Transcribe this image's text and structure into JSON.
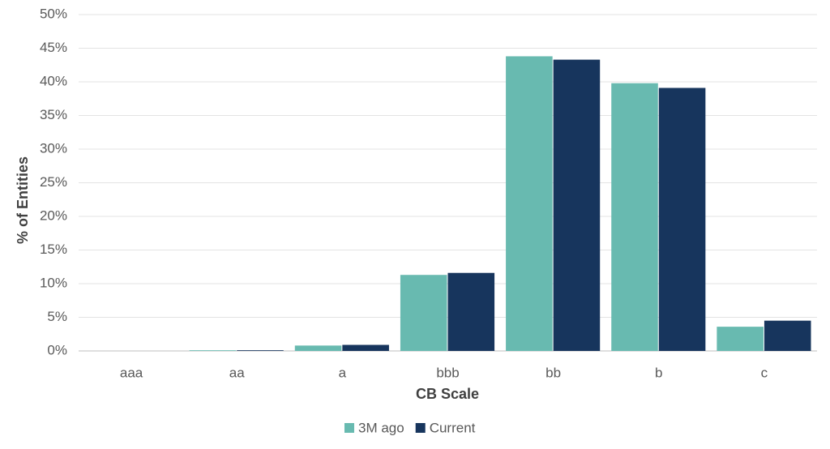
{
  "chart_data": {
    "type": "bar",
    "x_label": "CB Scale",
    "y_label": "% of Entities",
    "categories": [
      "aaa",
      "aa",
      "a",
      "bbb",
      "bb",
      "b",
      "c"
    ],
    "series": [
      {
        "name": "3M ago",
        "color": "#68bab0",
        "values": [
          0,
          0.1,
          0.8,
          11.3,
          43.8,
          39.8,
          3.6
        ]
      },
      {
        "name": "Current",
        "color": "#17355d",
        "values": [
          0,
          0.1,
          0.9,
          11.6,
          43.3,
          39.1,
          4.5
        ]
      }
    ],
    "ylim": [
      0,
      50
    ],
    "yticks": [
      {
        "value": 0,
        "label": "0%"
      },
      {
        "value": 5,
        "label": "5%"
      },
      {
        "value": 10,
        "label": "10%"
      },
      {
        "value": 15,
        "label": "15%"
      },
      {
        "value": 20,
        "label": "20%"
      },
      {
        "value": 25,
        "label": "25%"
      },
      {
        "value": 30,
        "label": "30%"
      },
      {
        "value": 35,
        "label": "35%"
      },
      {
        "value": 40,
        "label": "40%"
      },
      {
        "value": 45,
        "label": "45%"
      },
      {
        "value": 50,
        "label": "50%"
      }
    ],
    "grid": true,
    "legend": "bottom"
  }
}
